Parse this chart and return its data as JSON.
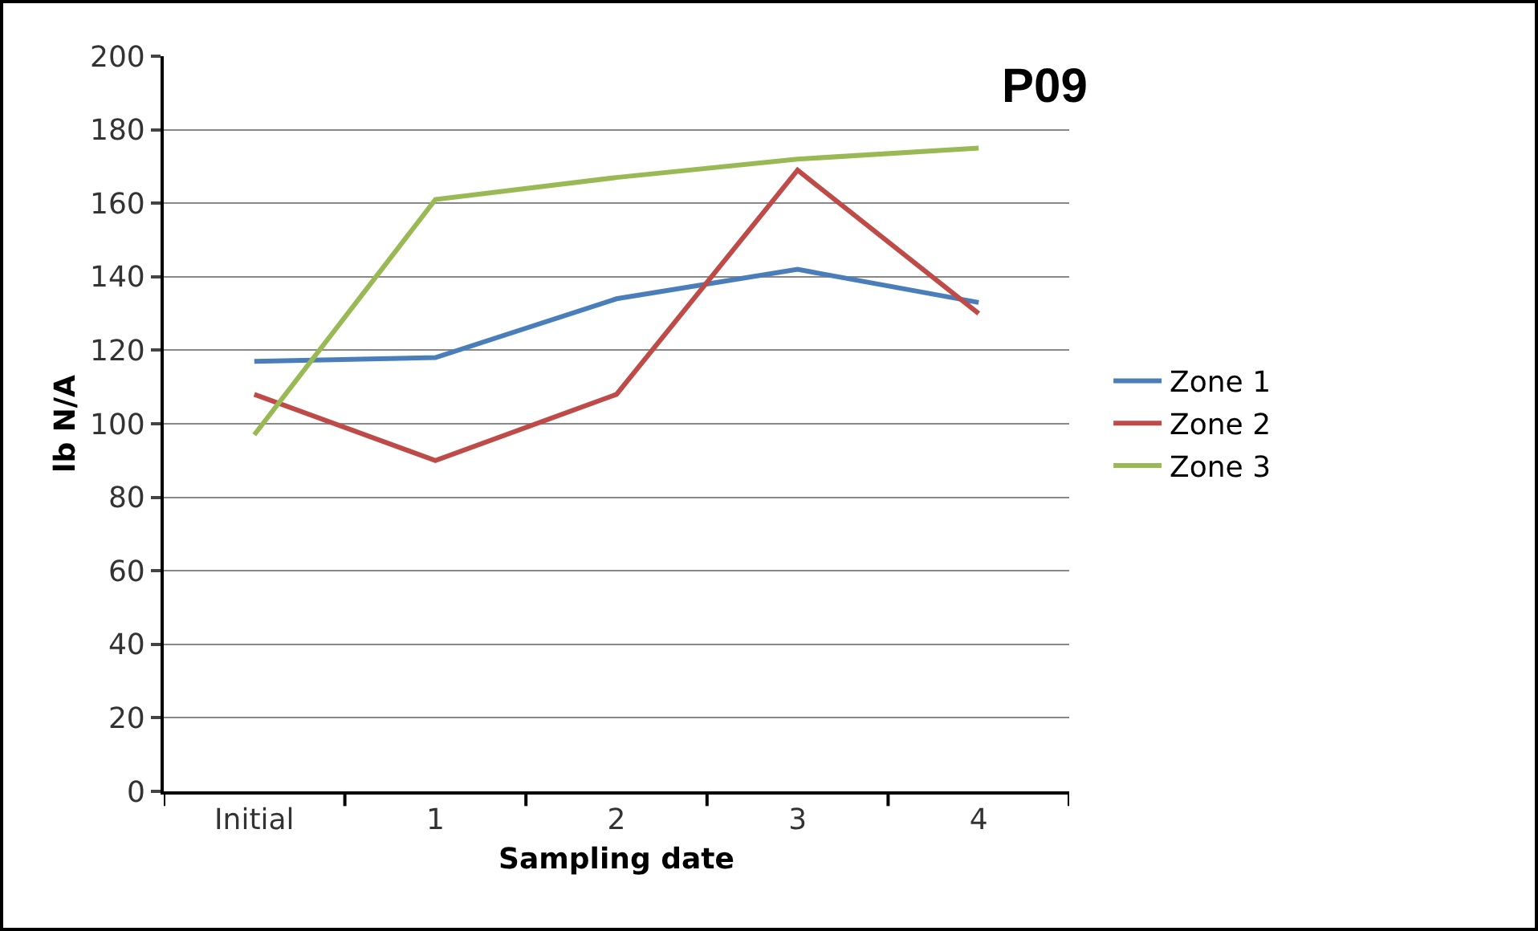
{
  "chart_data": {
    "type": "line",
    "title": "P09",
    "xlabel": "Sampling date",
    "ylabel": "lb N/A",
    "categories": [
      "Initial",
      "1",
      "2",
      "3",
      "4"
    ],
    "series": [
      {
        "name": "Zone 1",
        "color": "#4a7ebb",
        "values": [
          117,
          118,
          134,
          142,
          133
        ]
      },
      {
        "name": "Zone 2",
        "color": "#be4b48",
        "values": [
          108,
          90,
          108,
          169,
          130
        ]
      },
      {
        "name": "Zone 3",
        "color": "#98b954",
        "values": [
          97,
          161,
          167,
          172,
          175
        ]
      }
    ],
    "ylim": [
      0,
      200
    ],
    "yticks": [
      0,
      20,
      40,
      60,
      80,
      100,
      120,
      140,
      160,
      180,
      200
    ],
    "grid": "y",
    "legend": "right",
    "marker": "none",
    "line_style": "solid"
  }
}
